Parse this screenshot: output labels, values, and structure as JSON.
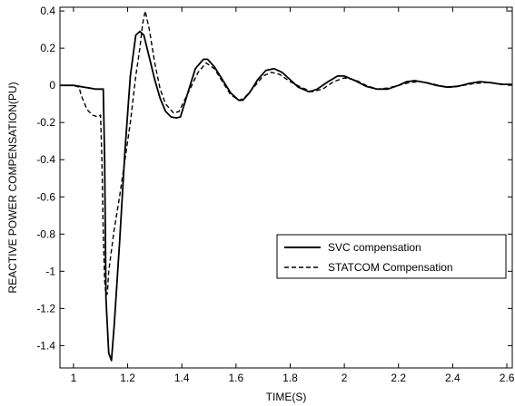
{
  "chart_data": {
    "type": "line",
    "title": "",
    "xlabel": "TIME(S)",
    "ylabel": "REACTIVE POWER COMPENSATION(PU)",
    "xlim": [
      0.95,
      2.62
    ],
    "ylim": [
      -1.52,
      0.42
    ],
    "xticks": [
      1,
      1.2,
      1.4,
      1.6,
      1.8,
      2,
      2.2,
      2.4,
      2.6
    ],
    "xtick_labels": [
      "1",
      "1.2",
      "1.4",
      "1.6",
      "1.8",
      "2",
      "2.2",
      "2.4",
      "2.6"
    ],
    "yticks": [
      0.4,
      0.2,
      0,
      -0.2,
      -0.4,
      -0.6,
      -0.8,
      -1,
      -1.2,
      -1.4
    ],
    "ytick_labels": [
      "0.4",
      "0.2",
      "0",
      "-0.2",
      "-0.4",
      "-0.6",
      "-0.8",
      "-1",
      "-1.2",
      "-1.4"
    ],
    "grid": false,
    "legend_position": "center-right",
    "series": [
      {
        "name": "SVC compensation",
        "style": "solid",
        "color": "#000000",
        "x": [
          0.95,
          1.0,
          1.02,
          1.04,
          1.06,
          1.08,
          1.09,
          1.1,
          1.11,
          1.115,
          1.12,
          1.13,
          1.14,
          1.15,
          1.17,
          1.19,
          1.21,
          1.23,
          1.245,
          1.26,
          1.28,
          1.3,
          1.32,
          1.34,
          1.36,
          1.38,
          1.395,
          1.42,
          1.45,
          1.48,
          1.495,
          1.52,
          1.55,
          1.58,
          1.61,
          1.625,
          1.65,
          1.68,
          1.71,
          1.74,
          1.77,
          1.8,
          1.83,
          1.87,
          1.9,
          1.94,
          1.975,
          2.0,
          2.04,
          2.08,
          2.12,
          2.16,
          2.2,
          2.23,
          2.26,
          2.3,
          2.34,
          2.38,
          2.42,
          2.46,
          2.5,
          2.54,
          2.58,
          2.62
        ],
        "y": [
          0.0,
          0.0,
          -0.005,
          -0.01,
          -0.015,
          -0.02,
          -0.02,
          -0.02,
          -0.02,
          -0.4,
          -1.15,
          -1.44,
          -1.48,
          -1.3,
          -0.85,
          -0.35,
          0.05,
          0.27,
          0.29,
          0.27,
          0.15,
          0.03,
          -0.07,
          -0.14,
          -0.17,
          -0.175,
          -0.17,
          -0.05,
          0.09,
          0.14,
          0.14,
          0.1,
          0.03,
          -0.04,
          -0.08,
          -0.08,
          -0.04,
          0.03,
          0.08,
          0.09,
          0.07,
          0.03,
          -0.01,
          -0.035,
          -0.02,
          0.02,
          0.05,
          0.05,
          0.025,
          -0.005,
          -0.02,
          -0.02,
          0.0,
          0.02,
          0.025,
          0.015,
          0.0,
          -0.01,
          -0.005,
          0.01,
          0.02,
          0.015,
          0.005,
          0.005
        ]
      },
      {
        "name": "STATCOM Compensation",
        "style": "dashed",
        "color": "#000000",
        "x": [
          0.95,
          1.0,
          1.02,
          1.03,
          1.05,
          1.07,
          1.09,
          1.1,
          1.105,
          1.11,
          1.115,
          1.12,
          1.125,
          1.13,
          1.15,
          1.17,
          1.19,
          1.21,
          1.23,
          1.245,
          1.255,
          1.265,
          1.28,
          1.3,
          1.32,
          1.34,
          1.37,
          1.39,
          1.42,
          1.46,
          1.49,
          1.52,
          1.55,
          1.58,
          1.61,
          1.63,
          1.66,
          1.7,
          1.73,
          1.76,
          1.8,
          1.84,
          1.88,
          1.92,
          1.96,
          2.0,
          2.04,
          2.08,
          2.12,
          2.16,
          2.2,
          2.24,
          2.28,
          2.32,
          2.36,
          2.4,
          2.44,
          2.48,
          2.52,
          2.56,
          2.6,
          2.62
        ],
        "y": [
          0.0,
          0.0,
          -0.01,
          -0.06,
          -0.13,
          -0.16,
          -0.17,
          -0.16,
          -0.4,
          -0.8,
          -1.05,
          -1.13,
          -1.12,
          -1.0,
          -0.78,
          -0.6,
          -0.4,
          -0.2,
          0.05,
          0.2,
          0.33,
          0.4,
          0.3,
          0.12,
          -0.02,
          -0.1,
          -0.15,
          -0.14,
          -0.05,
          0.07,
          0.12,
          0.09,
          0.02,
          -0.05,
          -0.08,
          -0.07,
          -0.02,
          0.05,
          0.07,
          0.06,
          0.02,
          -0.01,
          -0.035,
          -0.02,
          0.02,
          0.04,
          0.03,
          0.0,
          -0.02,
          -0.015,
          0.0,
          0.015,
          0.02,
          0.01,
          -0.005,
          -0.01,
          0.0,
          0.01,
          0.015,
          0.01,
          0.005,
          0.005
        ]
      }
    ]
  }
}
